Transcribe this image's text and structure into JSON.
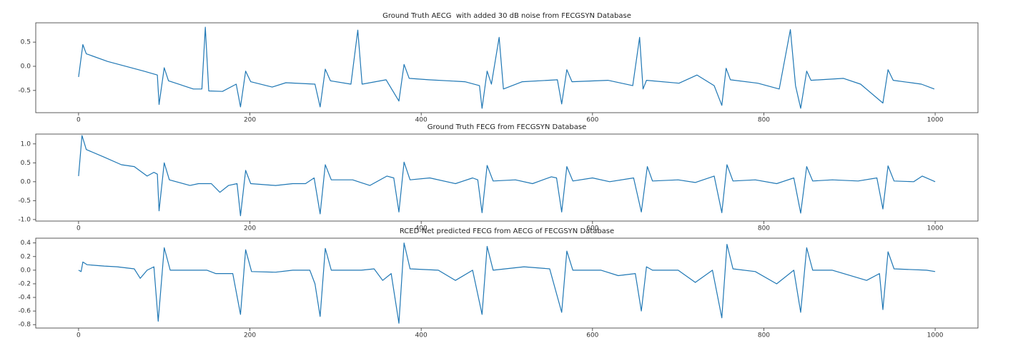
{
  "chart_data": [
    {
      "type": "line",
      "title": "Ground Truth AECG  with added 30 dB noise from FECGSYN Database",
      "xlim": [
        -50,
        1050
      ],
      "xticks": [
        0,
        200,
        400,
        600,
        800,
        1000
      ],
      "ylim": [
        -0.96,
        0.9
      ],
      "yticks": [
        0.5,
        {
          "value": 0,
          "label": "0.0"
        },
        -0.5
      ],
      "series": [
        {
          "color": "#1f77b4",
          "x": [
            0,
            5,
            9,
            34,
            76,
            92,
            94,
            100,
            105,
            134,
            144,
            148,
            152,
            168,
            184,
            189,
            195,
            201,
            226,
            242,
            276,
            282,
            288,
            294,
            318,
            326,
            331,
            359,
            374,
            380,
            386,
            409,
            451,
            468,
            471,
            477,
            482,
            491,
            496,
            518,
            559,
            564,
            570,
            576,
            618,
            647,
            655,
            659,
            663,
            701,
            722,
            742,
            751,
            756,
            761,
            793,
            818,
            831,
            837,
            843,
            850,
            855,
            893,
            913,
            939,
            945,
            951,
            984,
            999
          ],
          "values": [
            -0.22,
            0.45,
            0.26,
            0.1,
            -0.1,
            -0.18,
            -0.79,
            -0.03,
            -0.3,
            -0.47,
            -0.47,
            0.81,
            -0.51,
            -0.52,
            -0.37,
            -0.84,
            -0.1,
            -0.32,
            -0.43,
            -0.34,
            -0.37,
            -0.84,
            -0.06,
            -0.3,
            -0.37,
            0.75,
            -0.37,
            -0.28,
            -0.72,
            0.04,
            -0.25,
            -0.28,
            -0.32,
            -0.4,
            -0.87,
            -0.1,
            -0.37,
            0.6,
            -0.47,
            -0.32,
            -0.28,
            -0.78,
            -0.07,
            -0.32,
            -0.29,
            -0.4,
            0.6,
            -0.47,
            -0.29,
            -0.35,
            -0.18,
            -0.4,
            -0.81,
            -0.04,
            -0.28,
            -0.35,
            -0.47,
            0.76,
            -0.4,
            -0.87,
            -0.1,
            -0.29,
            -0.25,
            -0.37,
            -0.76,
            -0.07,
            -0.29,
            -0.37,
            -0.47
          ]
        }
      ]
    },
    {
      "type": "line",
      "title": "Ground Truth FECG from FECGSYN Database",
      "xlim": [
        -50,
        1050
      ],
      "xticks": [
        0,
        200,
        400,
        600,
        800,
        1000
      ],
      "ylim": [
        -1.04,
        1.26
      ],
      "yticks": [
        {
          "value": 1,
          "label": "1.0"
        },
        0.5,
        {
          "value": 0,
          "label": "0.0"
        },
        -0.5,
        {
          "value": -1,
          "label": "-1.0"
        }
      ],
      "series": [
        {
          "color": "#1f77b4",
          "x": [
            0,
            4,
            9,
            30,
            50,
            65,
            80,
            88,
            92,
            94,
            100,
            106,
            130,
            140,
            155,
            165,
            175,
            185,
            189,
            195,
            201,
            230,
            250,
            265,
            275,
            282,
            288,
            295,
            320,
            340,
            360,
            368,
            374,
            380,
            387,
            410,
            440,
            460,
            466,
            471,
            477,
            484,
            510,
            530,
            552,
            558,
            564,
            570,
            577,
            600,
            620,
            648,
            657,
            664,
            670,
            700,
            720,
            742,
            751,
            757,
            764,
            790,
            815,
            835,
            843,
            850,
            857,
            880,
            910,
            932,
            939,
            945,
            952,
            975,
            985,
            1000
          ],
          "values": [
            0.15,
            1.22,
            0.85,
            0.65,
            0.45,
            0.4,
            0.15,
            0.25,
            0.2,
            -0.77,
            0.5,
            0.05,
            -0.1,
            -0.05,
            -0.05,
            -0.28,
            -0.1,
            -0.05,
            -0.9,
            0.3,
            -0.05,
            -0.1,
            -0.05,
            -0.05,
            0.1,
            -0.85,
            0.45,
            0.05,
            0.05,
            -0.1,
            0.15,
            0.1,
            -0.8,
            0.52,
            0.05,
            0.1,
            -0.05,
            0.1,
            0.05,
            -0.82,
            0.43,
            0.02,
            0.05,
            -0.05,
            0.13,
            0.1,
            -0.8,
            0.4,
            0.02,
            0.1,
            0,
            0.1,
            -0.8,
            0.4,
            0.02,
            0.05,
            -0.02,
            0.15,
            -0.82,
            0.45,
            0.02,
            0.05,
            -0.05,
            0.1,
            -0.83,
            0.4,
            0.02,
            0.05,
            0.02,
            0.1,
            -0.72,
            0.42,
            0.02,
            0,
            0.15,
            0
          ]
        }
      ]
    },
    {
      "type": "line",
      "title": "RCED-Net predicted FECG from AECG of FECGSYN Database",
      "xlim": [
        -50,
        1050
      ],
      "xticks": [
        0,
        200,
        400,
        600,
        800,
        1000
      ],
      "ylim": [
        -0.85,
        0.47
      ],
      "yticks": [
        0.4,
        0.2,
        {
          "value": 0,
          "label": "0.0"
        },
        -0.2,
        -0.4,
        -0.6,
        -0.8
      ],
      "series": [
        {
          "color": "#1f77b4",
          "x": [
            0,
            3,
            5,
            10,
            30,
            45,
            65,
            72,
            80,
            88,
            93,
            100,
            107,
            130,
            150,
            160,
            180,
            189,
            195,
            202,
            230,
            250,
            270,
            276,
            282,
            288,
            295,
            330,
            345,
            355,
            365,
            374,
            380,
            387,
            420,
            440,
            460,
            471,
            477,
            484,
            520,
            550,
            564,
            570,
            577,
            610,
            630,
            650,
            657,
            663,
            670,
            700,
            720,
            740,
            751,
            757,
            764,
            790,
            815,
            835,
            843,
            850,
            857,
            880,
            920,
            935,
            939,
            945,
            952,
            990,
            1000
          ],
          "values": [
            0,
            -0.02,
            0.12,
            0.08,
            0.06,
            0.05,
            0.02,
            -0.12,
            0,
            0.05,
            -0.75,
            0.33,
            0,
            0,
            0,
            -0.05,
            -0.05,
            -0.65,
            0.3,
            -0.02,
            -0.03,
            0,
            0,
            -0.2,
            -0.68,
            0.32,
            0,
            0,
            0.02,
            -0.15,
            -0.05,
            -0.78,
            0.4,
            0.02,
            0,
            -0.15,
            0,
            -0.65,
            0.35,
            0,
            0.05,
            0.02,
            -0.62,
            0.28,
            0,
            0,
            -0.08,
            -0.05,
            -0.6,
            0.05,
            0,
            0,
            -0.18,
            0,
            -0.7,
            0.38,
            0.02,
            -0.02,
            -0.2,
            0,
            -0.62,
            0.33,
            0,
            0,
            -0.15,
            -0.05,
            -0.58,
            0.27,
            0.02,
            0,
            -0.02
          ]
        }
      ]
    }
  ]
}
